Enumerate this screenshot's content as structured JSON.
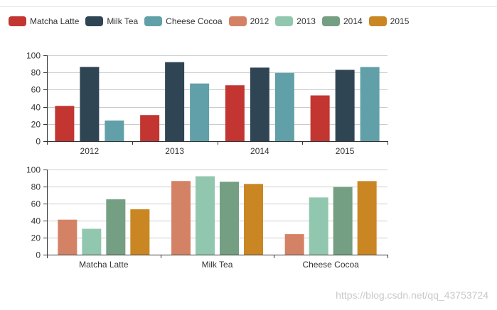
{
  "legend": [
    {
      "name": "Matcha Latte",
      "color": "#c23531"
    },
    {
      "name": "Milk Tea",
      "color": "#2f4554"
    },
    {
      "name": "Cheese Cocoa",
      "color": "#61a0a8"
    },
    {
      "name": "2012",
      "color": "#d48265"
    },
    {
      "name": "2013",
      "color": "#91c7ae"
    },
    {
      "name": "2014",
      "color": "#749f83"
    },
    {
      "name": "2015",
      "color": "#ca8622"
    }
  ],
  "chart_data": [
    {
      "type": "bar",
      "categories": [
        "2012",
        "2013",
        "2014",
        "2015"
      ],
      "series": [
        {
          "name": "Matcha Latte",
          "color": "#c23531",
          "values": [
            41.1,
            30.4,
            65.1,
            53.3
          ]
        },
        {
          "name": "Milk Tea",
          "color": "#2f4554",
          "values": [
            86.5,
            92.1,
            85.7,
            83.1
          ]
        },
        {
          "name": "Cheese Cocoa",
          "color": "#61a0a8",
          "values": [
            24.1,
            67.2,
            79.5,
            86.4
          ]
        }
      ],
      "ylim": [
        0,
        100
      ],
      "yticks": [
        0,
        20,
        40,
        60,
        80,
        100
      ],
      "title": "",
      "xlabel": "",
      "ylabel": ""
    },
    {
      "type": "bar",
      "categories": [
        "Matcha Latte",
        "Milk Tea",
        "Cheese Cocoa"
      ],
      "series": [
        {
          "name": "2012",
          "color": "#d48265",
          "values": [
            41.1,
            86.5,
            24.1
          ]
        },
        {
          "name": "2013",
          "color": "#91c7ae",
          "values": [
            30.4,
            92.1,
            67.2
          ]
        },
        {
          "name": "2014",
          "color": "#749f83",
          "values": [
            65.1,
            85.7,
            79.5
          ]
        },
        {
          "name": "2015",
          "color": "#ca8622",
          "values": [
            53.3,
            83.1,
            86.4
          ]
        }
      ],
      "ylim": [
        0,
        100
      ],
      "yticks": [
        0,
        20,
        40,
        60,
        80,
        100
      ],
      "title": "",
      "xlabel": "",
      "ylabel": ""
    }
  ],
  "watermark": "https://blog.csdn.net/qq_43753724"
}
